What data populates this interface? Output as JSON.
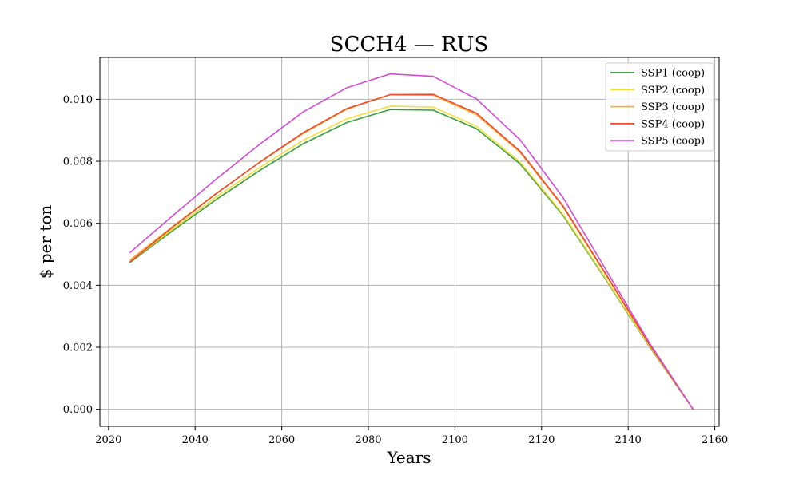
{
  "chart_data": {
    "type": "line",
    "title": "SCCH4 — RUS",
    "xlabel": "Years",
    "ylabel": "$ per ton",
    "xlim": [
      2018,
      2161
    ],
    "ylim": [
      -0.00055,
      0.01135
    ],
    "grid": true,
    "legend_position": "top-right",
    "x_ticks": [
      2020,
      2040,
      2060,
      2080,
      2100,
      2120,
      2140,
      2160
    ],
    "x_tick_labels": [
      "2020",
      "2040",
      "2060",
      "2080",
      "2100",
      "2120",
      "2140",
      "2160"
    ],
    "y_ticks": [
      0.0,
      0.002,
      0.004,
      0.006,
      0.008,
      0.01
    ],
    "y_tick_labels": [
      "0.000",
      "0.002",
      "0.004",
      "0.006",
      "0.008",
      "0.010"
    ],
    "x": [
      2025,
      2035,
      2045,
      2055,
      2065,
      2075,
      2085,
      2095,
      2105,
      2115,
      2125,
      2135,
      2145,
      2155
    ],
    "series": [
      {
        "name": "SSP1 (coop)",
        "color": "#3a9e3a",
        "values": [
          0.00474,
          0.00578,
          0.00678,
          0.00771,
          0.00857,
          0.00925,
          0.00967,
          0.00965,
          0.00905,
          0.00792,
          0.00625,
          0.00415,
          0.002,
          0.0
        ]
      },
      {
        "name": "SSP2 (coop)",
        "color": "#f2e03a",
        "values": [
          0.00477,
          0.00583,
          0.00686,
          0.00781,
          0.00868,
          0.00937,
          0.00978,
          0.00975,
          0.00913,
          0.00798,
          0.00629,
          0.00418,
          0.00202,
          0.0
        ]
      },
      {
        "name": "SSP3 (coop)",
        "color": "#f5b042",
        "values": [
          0.00482,
          0.00592,
          0.00698,
          0.00797,
          0.0089,
          0.00968,
          0.01015,
          0.01013,
          0.0095,
          0.00829,
          0.00652,
          0.0043,
          0.00206,
          0.0
        ]
      },
      {
        "name": "SSP4 (coop)",
        "color": "#f04a2a",
        "values": [
          0.00476,
          0.0059,
          0.00697,
          0.00798,
          0.00893,
          0.0097,
          0.01015,
          0.01016,
          0.00955,
          0.00833,
          0.00655,
          0.00433,
          0.00207,
          0.0
        ]
      },
      {
        "name": "SSP5 (coop)",
        "color": "#d24bd6",
        "values": [
          0.00506,
          0.00627,
          0.00744,
          0.00856,
          0.0096,
          0.01037,
          0.01082,
          0.01074,
          0.01001,
          0.0087,
          0.00682,
          0.00447,
          0.00212,
          0.0
        ]
      }
    ]
  }
}
